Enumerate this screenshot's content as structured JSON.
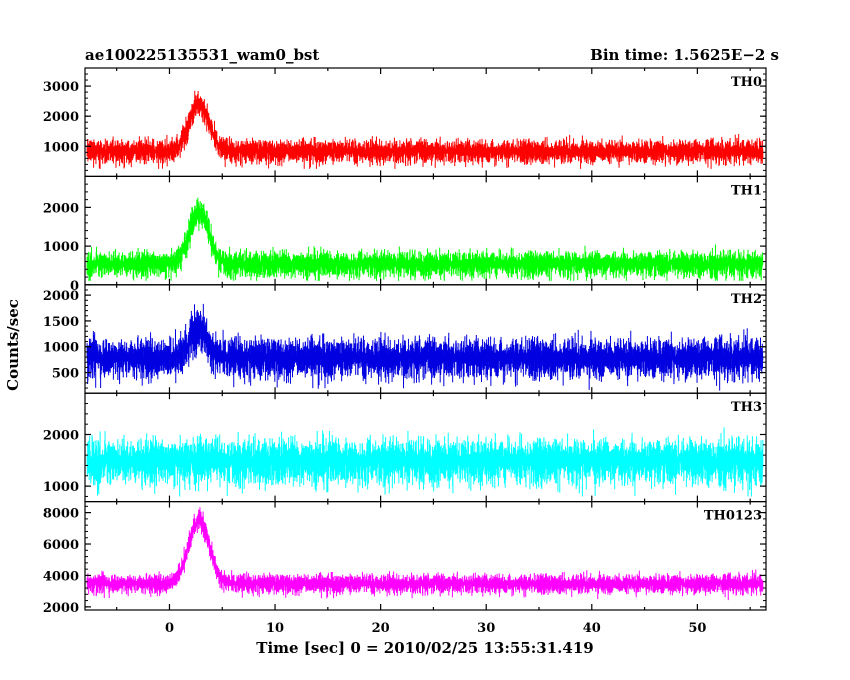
{
  "header": {
    "title": "ae100225135531_wam0_bst",
    "bin_time": "Bin time: 1.5625E−2 s"
  },
  "chart_data": [
    {
      "type": "line",
      "name": "TH0",
      "color": "#ff0000",
      "ylim": [
        0,
        3600
      ],
      "yticks": [
        1000,
        2000,
        3000
      ],
      "xlim": [
        -8,
        56.5
      ],
      "baseline": 850,
      "noise": 380,
      "peak": {
        "t": 2.8,
        "height": 1600,
        "width": 1.3
      },
      "floor": 250
    },
    {
      "type": "line",
      "name": "TH1",
      "color": "#00ff00",
      "ylim": [
        0,
        2800
      ],
      "yticks": [
        0,
        1000,
        2000
      ],
      "xlim": [
        -8,
        56.5
      ],
      "baseline": 550,
      "noise": 330,
      "peak": {
        "t": 2.8,
        "height": 1300,
        "width": 1.3
      },
      "floor": 100
    },
    {
      "type": "line",
      "name": "TH2",
      "color": "#0000e0",
      "ylim": [
        100,
        2200
      ],
      "yticks": [
        500,
        1000,
        1500,
        2000
      ],
      "xlim": [
        -8,
        56.5
      ],
      "baseline": 800,
      "noise": 380,
      "peak": {
        "t": 2.8,
        "height": 550,
        "width": 1.2
      },
      "floor": 150
    },
    {
      "type": "line",
      "name": "TH3",
      "color": "#00ffff",
      "ylim": [
        700,
        2800
      ],
      "yticks": [
        1000,
        2000
      ],
      "xlim": [
        -8,
        56.5
      ],
      "baseline": 1500,
      "noise": 430,
      "peak": {
        "t": 2.8,
        "height": 0,
        "width": 1.0
      },
      "floor": 800
    },
    {
      "type": "line",
      "name": "TH0123",
      "color": "#ff00ff",
      "ylim": [
        1800,
        8700
      ],
      "yticks": [
        2000,
        4000,
        6000,
        8000
      ],
      "xlim": [
        -8,
        56.5
      ],
      "baseline": 3500,
      "noise": 600,
      "peak": {
        "t": 2.8,
        "height": 4000,
        "width": 1.4
      },
      "floor": 2000
    }
  ],
  "x_axis": {
    "label": "Time [sec] 0 = 2010/02/25 13:55:31.419",
    "ticks": [
      0,
      10,
      20,
      30,
      40,
      50
    ]
  },
  "y_axis": {
    "label": "Counts/sec"
  }
}
